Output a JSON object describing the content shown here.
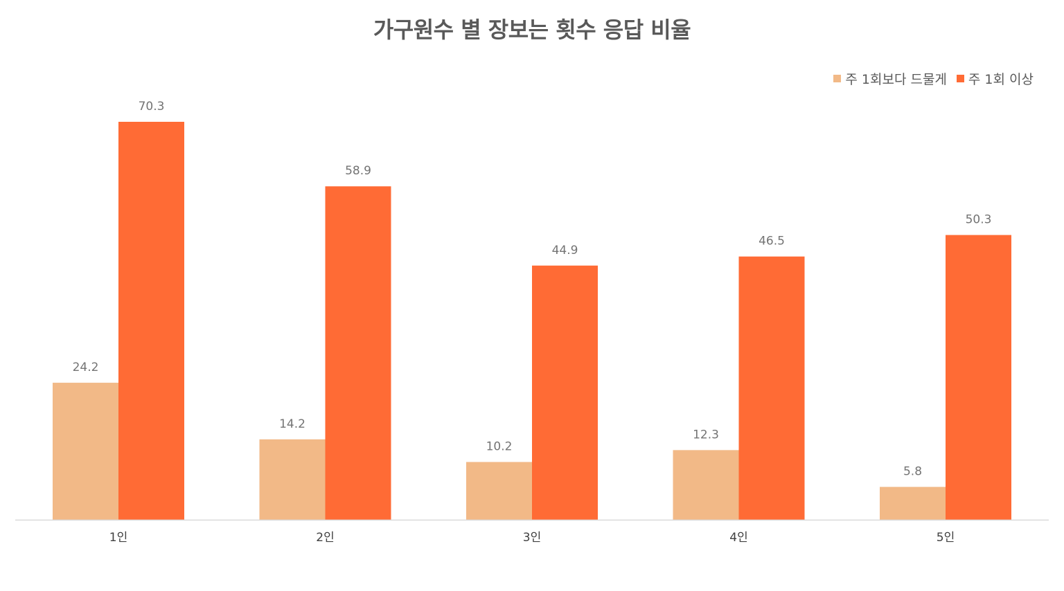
{
  "chart_data": {
    "type": "bar",
    "title": "가구원수 별 장보는 횟수 응답 비율",
    "categories": [
      "1인",
      "2인",
      "3인",
      "4인",
      "5인"
    ],
    "series": [
      {
        "name": "주 1회보다 드물게",
        "color": "#F2B987",
        "values": [
          24.2,
          14.2,
          10.2,
          12.3,
          5.8
        ]
      },
      {
        "name": "주 1회 이상",
        "color": "#FF6B35",
        "values": [
          70.3,
          58.9,
          44.9,
          46.5,
          50.3
        ]
      }
    ],
    "xlabel": "",
    "ylabel": "",
    "ylim": [
      0,
      70.3
    ],
    "grid": false,
    "legend_position": "top-right",
    "axis_color": "#D9D9D9"
  }
}
